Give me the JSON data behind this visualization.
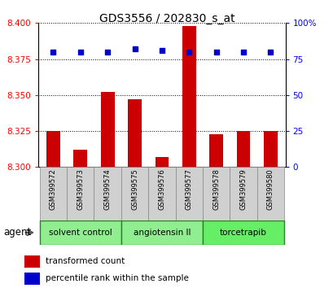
{
  "title": "GDS3556 / 202830_s_at",
  "samples": [
    "GSM399572",
    "GSM399573",
    "GSM399574",
    "GSM399575",
    "GSM399576",
    "GSM399577",
    "GSM399578",
    "GSM399579",
    "GSM399580"
  ],
  "red_values": [
    8.325,
    8.312,
    8.352,
    8.347,
    8.307,
    8.398,
    8.323,
    8.325,
    8.325
  ],
  "blue_values": [
    80,
    80,
    80,
    82,
    81,
    80,
    80,
    80,
    80
  ],
  "ylim_left": [
    8.3,
    8.4
  ],
  "ylim_right": [
    0,
    100
  ],
  "yticks_left": [
    8.3,
    8.325,
    8.35,
    8.375,
    8.4
  ],
  "yticks_right": [
    0,
    25,
    50,
    75,
    100
  ],
  "ytick_right_labels": [
    "0",
    "25",
    "50",
    "75",
    "100%"
  ],
  "groups": [
    {
      "label": "solvent control",
      "start": 0,
      "end": 3,
      "color": "#90EE90"
    },
    {
      "label": "angiotensin II",
      "start": 3,
      "end": 6,
      "color": "#90EE90"
    },
    {
      "label": "torcetrapib",
      "start": 6,
      "end": 9,
      "color": "#66EE66"
    }
  ],
  "bar_color": "#CC0000",
  "dot_color": "#0000CC",
  "bar_width": 0.5,
  "agent_label": "agent",
  "legend_red": "transformed count",
  "legend_blue": "percentile rank within the sample",
  "sample_box_color": "#D0D0D0",
  "sample_box_edge": "#888888"
}
